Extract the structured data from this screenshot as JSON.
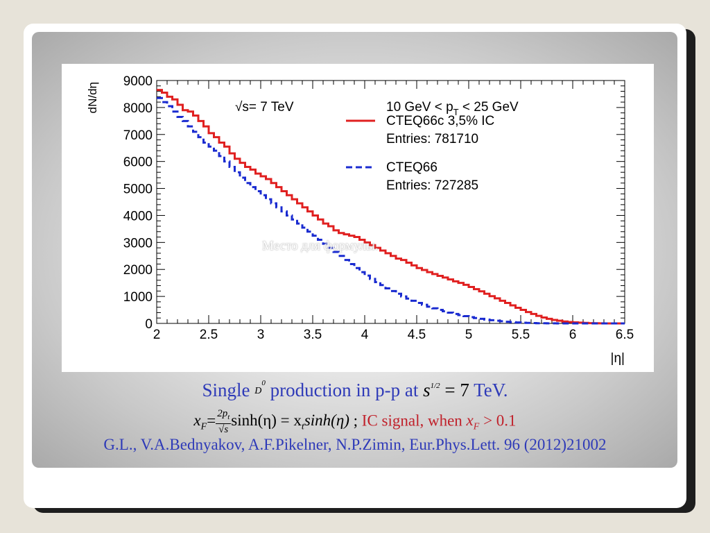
{
  "chart_data": {
    "type": "line",
    "ylabel": "dN/dη",
    "xlabel": "|η|",
    "xlim": [
      2,
      6.5
    ],
    "ylim": [
      0,
      9000
    ],
    "xticks": [
      "2",
      "2.5",
      "3",
      "3.5",
      "4",
      "4.5",
      "5",
      "5.5",
      "6",
      "6.5"
    ],
    "yticks": [
      "0",
      "1000",
      "2000",
      "3000",
      "4000",
      "5000",
      "6000",
      "7000",
      "8000",
      "9000"
    ],
    "annotations": {
      "energy": "√s= 7 TeV",
      "pt_range": "10 GeV < p",
      "pt_sub": "T",
      "pt_range_end": " < 25 GeV"
    },
    "bin_width": 0.05,
    "x_start": 2.0,
    "series": [
      {
        "name": "CTEQ66c 3,5% IC",
        "entries_label": "Entries: 781710",
        "color": "#e02020",
        "dash": "solid",
        "values": [
          8650,
          8550,
          8400,
          8300,
          8100,
          7900,
          7850,
          7700,
          7500,
          7300,
          7050,
          6900,
          6700,
          6550,
          6300,
          6100,
          5950,
          5800,
          5700,
          5550,
          5450,
          5350,
          5200,
          5050,
          4900,
          4750,
          4600,
          4450,
          4300,
          4150,
          4000,
          3850,
          3700,
          3600,
          3450,
          3350,
          3300,
          3250,
          3200,
          3100,
          3000,
          2900,
          2800,
          2700,
          2600,
          2500,
          2400,
          2350,
          2250,
          2150,
          2050,
          1980,
          1900,
          1830,
          1760,
          1700,
          1630,
          1560,
          1500,
          1430,
          1350,
          1270,
          1190,
          1100,
          1010,
          930,
          840,
          760,
          670,
          580,
          500,
          420,
          350,
          280,
          220,
          170,
          130,
          100,
          70,
          50,
          40,
          30,
          20,
          10,
          5,
          2,
          0,
          0,
          0,
          0
        ]
      },
      {
        "name": "CTEQ66",
        "entries_label": "Entries: 727285",
        "color": "#1a2bd0",
        "dash": "dashed",
        "values": [
          8350,
          8200,
          8050,
          7850,
          7650,
          7500,
          7300,
          7100,
          6900,
          6700,
          6550,
          6400,
          6200,
          6000,
          5800,
          5600,
          5400,
          5200,
          5050,
          4900,
          4750,
          4600,
          4450,
          4300,
          4150,
          4000,
          3850,
          3700,
          3550,
          3400,
          3250,
          3100,
          2950,
          2800,
          2650,
          2500,
          2350,
          2200,
          2050,
          1900,
          1770,
          1650,
          1530,
          1420,
          1300,
          1200,
          1100,
          1000,
          920,
          840,
          760,
          690,
          620,
          560,
          500,
          450,
          400,
          350,
          310,
          270,
          230,
          200,
          170,
          140,
          120,
          100,
          80,
          60,
          45,
          35,
          25,
          18,
          12,
          8,
          5,
          3,
          2,
          1,
          0,
          0,
          0,
          0,
          0,
          0,
          0,
          0,
          0,
          0,
          0,
          0
        ]
      }
    ]
  },
  "captions": {
    "single": "Single ",
    "d_meson": "D",
    "d_meson_sup": "0",
    "production": " production in p-p at ",
    "s_sym": "s",
    "s_exp": "1/2",
    "eq_val": " = 7",
    "tev": " TeV.",
    "xf_lhs": "x",
    "xf_sub": "F",
    "frac_num": "2p",
    "frac_num_sub": "t",
    "frac_den": "√s",
    "sinh_part": "sinh(η) = x",
    "xt_sub": "t",
    "sinh_part2": "sinh(η)",
    "semicolon": " ; ",
    "ic_signal": "IC signal, when ",
    "ic_xf": "x",
    "ic_xf_sub": "F",
    "ic_cond": " > 0.1",
    "citation": "G.L., V.A.Bednyakov, A.F.Pikelner, N.P.Zimin, Eur.Phys.Lett. 96 (2012)21002",
    "watermark": "Место для формулы."
  }
}
